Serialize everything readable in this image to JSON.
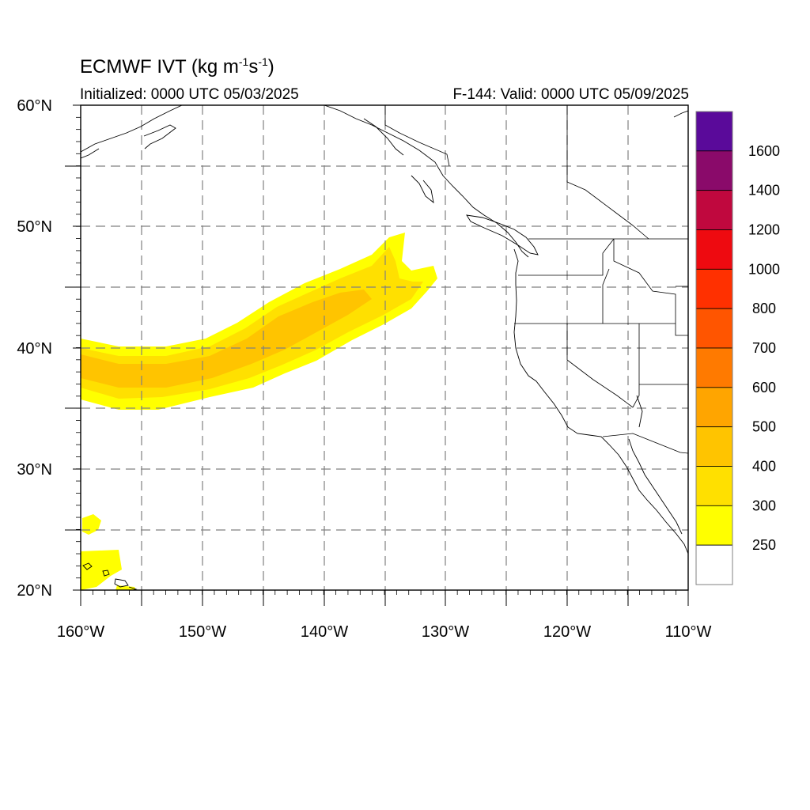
{
  "title": {
    "main": "ECMWF IVT (kg m",
    "sup1": "-1",
    "mid": "s",
    "sup2": "-1",
    "end": ")"
  },
  "initialized": "Initialized: 0000 UTC 05/03/2025",
  "valid": "F-144: Valid: 0000 UTC 05/09/2025",
  "map": {
    "lon_range": [
      -160,
      -110
    ],
    "lat_range": [
      20,
      60
    ],
    "lat_labels": [
      "60°N",
      "50°N",
      "40°N",
      "30°N",
      "20°N"
    ],
    "lon_labels": [
      "160°W",
      "150°W",
      "140°W",
      "130°W",
      "120°W",
      "110°W"
    ],
    "grid": "dashed every 5 degrees"
  },
  "colorbar": {
    "labels": [
      "1600",
      "1400",
      "1200",
      "1000",
      "800",
      "700",
      "600",
      "500",
      "400",
      "300",
      "250"
    ],
    "colors": [
      "#5a0a9a",
      "#8a0a6a",
      "#c0083e",
      "#ee0a10",
      "#ff3000",
      "#ff5500",
      "#ff7a00",
      "#ffa500",
      "#ffc400",
      "#ffe000",
      "#ffff00",
      "#ffffff"
    ]
  },
  "ivt_plume": {
    "description_levels": [
      250,
      300,
      400
    ]
  }
}
